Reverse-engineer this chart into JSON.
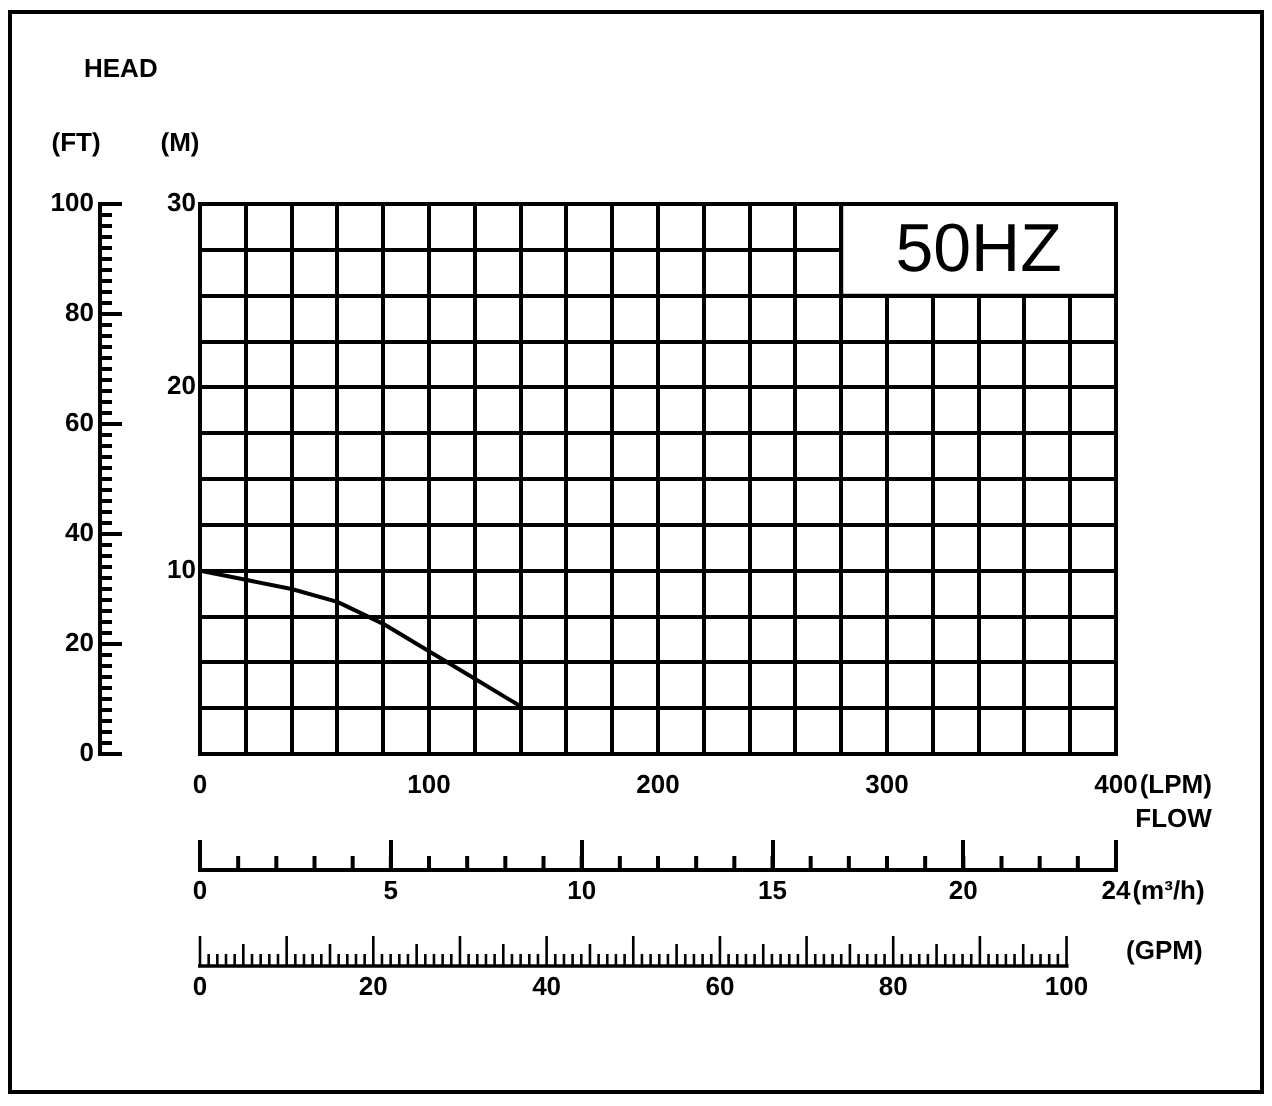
{
  "chart_data": {
    "type": "line",
    "title": "50HZ",
    "xlabel": "(LPM)",
    "ylabel": "(M)",
    "y2label": "(FT)",
    "x2label": "(m³/h)",
    "annotations": [
      "HEAD",
      "FLOW",
      "(GPM)",
      "0",
      "20",
      "40",
      "60",
      "80",
      "100"
    ],
    "x": [
      0,
      20,
      40,
      60,
      80,
      100,
      120,
      140
    ],
    "series": [
      {
        "color": "#000000",
        "values": [
          10,
          9.5,
          9,
          8.3,
          7.1,
          5.6,
          4.1,
          2.6
        ]
      }
    ],
    "xlim": [
      0,
      400
    ],
    "xticks": [
      0,
      {
        "value": 20,
        "label": null
      },
      {
        "value": 40,
        "label": null
      },
      {
        "value": 60,
        "label": null
      },
      {
        "value": 80,
        "label": null
      },
      100,
      {
        "value": 120,
        "label": null
      },
      {
        "value": 140,
        "label": null
      },
      {
        "value": 160,
        "label": null
      },
      {
        "value": 180,
        "label": null
      },
      200,
      {
        "value": 220,
        "label": null
      },
      {
        "value": 240,
        "label": null
      },
      {
        "value": 260,
        "label": null
      },
      {
        "value": 280,
        "label": null
      },
      300,
      {
        "value": 320,
        "label": null
      },
      {
        "value": 340,
        "label": null
      },
      {
        "value": 360,
        "label": null
      },
      {
        "value": 380,
        "label": null
      },
      400
    ],
    "ylim": [
      0,
      30
    ],
    "yticks": [
      {
        "value": 0,
        "label": null
      },
      {
        "value": 2.5,
        "label": null
      },
      {
        "value": 5,
        "label": null
      },
      {
        "value": 7.5,
        "label": null
      },
      10,
      {
        "value": 12.5,
        "label": null
      },
      {
        "value": 15,
        "label": null
      },
      {
        "value": 17.5,
        "label": null
      },
      20,
      {
        "value": 22.5,
        "label": null
      },
      {
        "value": 25,
        "label": null
      },
      {
        "value": 27.5,
        "label": null
      },
      30
    ],
    "y2lim": [
      0,
      100
    ],
    "y2ticks": [
      0,
      20,
      40,
      60,
      80,
      100
    ],
    "x2lim": [
      0,
      24
    ],
    "x2ticks": [
      0,
      5,
      10,
      15,
      20,
      24
    ],
    "grid": true,
    "legend": false,
    "marker": "none",
    "line_style": "solid"
  }
}
